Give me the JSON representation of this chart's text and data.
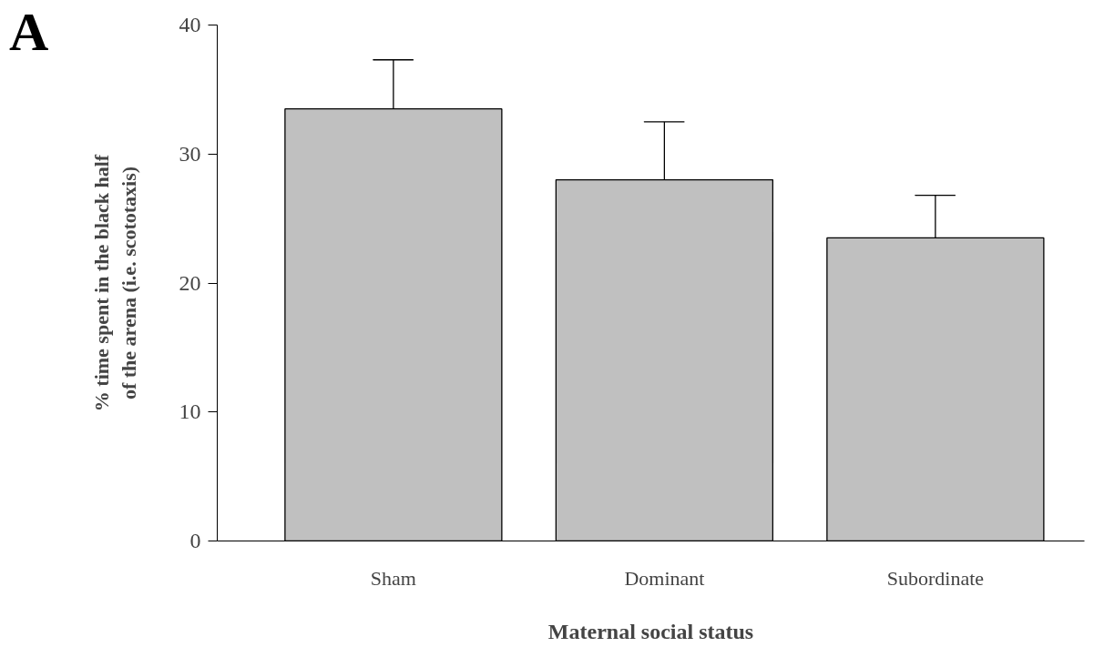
{
  "chart_data": {
    "type": "bar",
    "categories": [
      "Sham",
      "Dominant",
      "Subordinate"
    ],
    "values": [
      33.5,
      28.0,
      23.5
    ],
    "errors": [
      [
        33.5,
        37.3
      ],
      [
        28.0,
        32.5
      ],
      [
        23.5,
        26.8
      ]
    ],
    "color": "#c0c0c0",
    "ylim": [
      0,
      40
    ],
    "yticks": [
      0,
      10,
      20,
      30,
      40
    ],
    "xlabel": "Maternal social status",
    "ylabel": "% time spent in the black half of the arena (i.e. scototaxis)",
    "annotations": [
      "A"
    ],
    "grid": false
  }
}
